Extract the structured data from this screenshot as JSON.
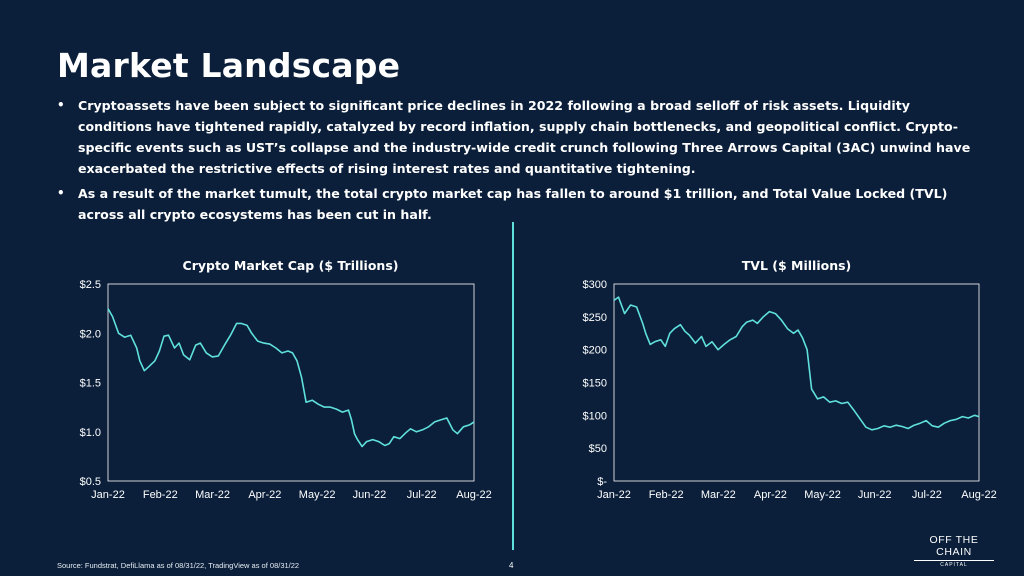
{
  "page": {
    "title": "Market Landscape",
    "bullets": [
      "Cryptoassets have been subject to significant price declines in 2022 following a broad selloff of risk assets. Liquidity conditions have tightened rapidly, catalyzed by record inflation, supply chain bottlenecks, and geopolitical conflict. Crypto-specific events such as UST’s collapse and the industry-wide credit crunch following Three Arrows Capital (3AC) unwind have exacerbated the restrictive effects of rising interest rates and quantitative tightening.",
      "As a result of the market tumult, the total crypto market cap has fallen to around $1 trillion, and Total Value Locked (TVL) across all crypto ecosystems has been cut in half."
    ],
    "bullet_symbol": "•",
    "source": "Source: Fundstrat, DefiLlama as of 08/31/22, TradingView as of 08/31/22",
    "page_number": "4",
    "logo": {
      "main": "OFF THE CHAIN",
      "sub": "CAPITAL"
    },
    "colors": {
      "background": "#0b1f3a",
      "line": "#5fe0dc",
      "text": "#ffffff"
    }
  },
  "chart_data": [
    {
      "type": "line",
      "title": "Crypto Market Cap ($ Trillions)",
      "xlabel": "",
      "ylabel": "",
      "ylim": [
        0.5,
        2.5
      ],
      "yticks": [
        "$0.5",
        "$1.0",
        "$1.5",
        "$2.0",
        "$2.5"
      ],
      "xticks": [
        "Jan-22",
        "Feb-22",
        "Mar-22",
        "Apr-22",
        "May-22",
        "Jun-22",
        "Jul-22",
        "Aug-22"
      ],
      "grid": false,
      "x": [
        "2022-01-01",
        "2022-01-04",
        "2022-01-08",
        "2022-01-12",
        "2022-01-16",
        "2022-01-20",
        "2022-01-22",
        "2022-01-25",
        "2022-01-28",
        "2022-02-01",
        "2022-02-04",
        "2022-02-07",
        "2022-02-10",
        "2022-02-14",
        "2022-02-17",
        "2022-02-20",
        "2022-02-24",
        "2022-02-28",
        "2022-03-03",
        "2022-03-07",
        "2022-03-11",
        "2022-03-15",
        "2022-03-19",
        "2022-03-23",
        "2022-03-27",
        "2022-03-30",
        "2022-04-03",
        "2022-04-06",
        "2022-04-10",
        "2022-04-14",
        "2022-04-18",
        "2022-04-22",
        "2022-04-26",
        "2022-04-30",
        "2022-05-03",
        "2022-05-06",
        "2022-05-09",
        "2022-05-12",
        "2022-05-16",
        "2022-05-20",
        "2022-05-24",
        "2022-05-28",
        "2022-06-01",
        "2022-06-05",
        "2022-06-09",
        "2022-06-11",
        "2022-06-13",
        "2022-06-15",
        "2022-06-18",
        "2022-06-21",
        "2022-06-25",
        "2022-06-29",
        "2022-07-03",
        "2022-07-06",
        "2022-07-09",
        "2022-07-13",
        "2022-07-17",
        "2022-07-20",
        "2022-07-24",
        "2022-07-28",
        "2022-08-01",
        "2022-08-05",
        "2022-08-09",
        "2022-08-13",
        "2022-08-17",
        "2022-08-20",
        "2022-08-24",
        "2022-08-28",
        "2022-08-31"
      ],
      "series": [
        {
          "values": [
            2.25,
            2.17,
            2.0,
            1.96,
            1.98,
            1.85,
            1.72,
            1.62,
            1.66,
            1.72,
            1.82,
            1.97,
            1.98,
            1.85,
            1.9,
            1.78,
            1.73,
            1.88,
            1.9,
            1.8,
            1.76,
            1.77,
            1.88,
            1.98,
            2.1,
            2.1,
            2.08,
            2.0,
            1.92,
            1.9,
            1.89,
            1.85,
            1.8,
            1.82,
            1.8,
            1.72,
            1.55,
            1.3,
            1.32,
            1.28,
            1.25,
            1.25,
            1.23,
            1.2,
            1.22,
            1.12,
            0.98,
            0.92,
            0.85,
            0.9,
            0.92,
            0.9,
            0.86,
            0.88,
            0.95,
            0.93,
            0.99,
            1.03,
            1.0,
            1.02,
            1.05,
            1.1,
            1.12,
            1.14,
            1.02,
            0.98,
            1.05,
            1.07,
            1.1
          ]
        }
      ]
    },
    {
      "type": "line",
      "title": "TVL ($ Millions)",
      "xlabel": "",
      "ylabel": "",
      "ylim": [
        0,
        300
      ],
      "yticks": [
        "$-",
        "$50",
        "$100",
        "$150",
        "$200",
        "$250",
        "$300"
      ],
      "xticks": [
        "Jan-22",
        "Feb-22",
        "Mar-22",
        "Apr-22",
        "May-22",
        "Jun-22",
        "Jul-22",
        "Aug-22"
      ],
      "grid": false,
      "x": [
        "2022-01-01",
        "2022-01-04",
        "2022-01-08",
        "2022-01-12",
        "2022-01-16",
        "2022-01-20",
        "2022-01-22",
        "2022-01-25",
        "2022-01-28",
        "2022-02-01",
        "2022-02-04",
        "2022-02-07",
        "2022-02-10",
        "2022-02-14",
        "2022-02-17",
        "2022-02-20",
        "2022-02-24",
        "2022-02-28",
        "2022-03-03",
        "2022-03-07",
        "2022-03-11",
        "2022-03-15",
        "2022-03-19",
        "2022-03-23",
        "2022-03-27",
        "2022-03-30",
        "2022-04-03",
        "2022-04-06",
        "2022-04-10",
        "2022-04-14",
        "2022-04-18",
        "2022-04-22",
        "2022-04-26",
        "2022-04-30",
        "2022-05-03",
        "2022-05-06",
        "2022-05-09",
        "2022-05-12",
        "2022-05-16",
        "2022-05-20",
        "2022-05-24",
        "2022-05-28",
        "2022-06-01",
        "2022-06-05",
        "2022-06-09",
        "2022-06-13",
        "2022-06-17",
        "2022-06-21",
        "2022-06-25",
        "2022-06-29",
        "2022-07-03",
        "2022-07-07",
        "2022-07-11",
        "2022-07-15",
        "2022-07-19",
        "2022-07-23",
        "2022-07-27",
        "2022-07-31",
        "2022-08-04",
        "2022-08-08",
        "2022-08-12",
        "2022-08-16",
        "2022-08-20",
        "2022-08-24",
        "2022-08-28",
        "2022-08-31"
      ],
      "series": [
        {
          "values": [
            275,
            280,
            255,
            268,
            265,
            240,
            225,
            208,
            212,
            215,
            205,
            225,
            232,
            238,
            228,
            222,
            210,
            220,
            205,
            212,
            200,
            208,
            215,
            220,
            235,
            242,
            245,
            240,
            250,
            258,
            255,
            245,
            232,
            225,
            230,
            218,
            200,
            140,
            125,
            128,
            120,
            122,
            118,
            120,
            108,
            95,
            82,
            78,
            80,
            84,
            82,
            85,
            83,
            80,
            85,
            88,
            92,
            84,
            82,
            88,
            92,
            94,
            98,
            96,
            100,
            98
          ]
        }
      ]
    }
  ]
}
